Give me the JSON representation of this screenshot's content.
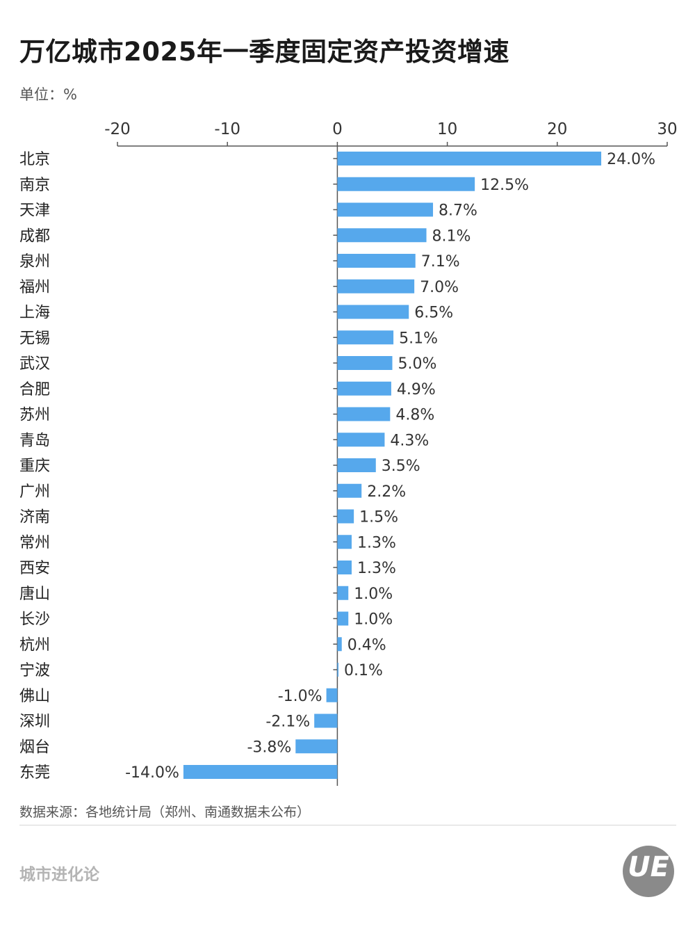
{
  "header": {
    "title": "万亿城市2025年一季度固定资产投资增速",
    "unit": "单位：%"
  },
  "chart_data": {
    "type": "bar",
    "orientation": "horizontal",
    "title": "万亿城市2025年一季度固定资产投资增速",
    "xlabel": "",
    "ylabel": "",
    "xlim": [
      -20,
      30
    ],
    "ticks": [
      -20,
      -10,
      0,
      10,
      20,
      30
    ],
    "categories": [
      "北京",
      "南京",
      "天津",
      "成都",
      "泉州",
      "福州",
      "上海",
      "无锡",
      "武汉",
      "合肥",
      "苏州",
      "青岛",
      "重庆",
      "广州",
      "济南",
      "常州",
      "西安",
      "唐山",
      "长沙",
      "杭州",
      "宁波",
      "佛山",
      "深圳",
      "烟台",
      "东莞"
    ],
    "values": [
      24.0,
      12.5,
      8.7,
      8.1,
      7.1,
      7.0,
      6.5,
      5.1,
      5.0,
      4.9,
      4.8,
      4.3,
      3.5,
      2.2,
      1.5,
      1.3,
      1.3,
      1.0,
      1.0,
      0.4,
      0.1,
      -1.0,
      -2.1,
      -3.8,
      -14.0
    ],
    "labels": [
      "24.0%",
      "12.5%",
      "8.7%",
      "8.1%",
      "7.1%",
      "7.0%",
      "6.5%",
      "5.1%",
      "5.0%",
      "4.9%",
      "4.8%",
      "4.3%",
      "3.5%",
      "2.2%",
      "1.5%",
      "1.3%",
      "1.3%",
      "1.0%",
      "1.0%",
      "0.4%",
      "0.1%",
      "-1.0%",
      "-2.1%",
      "-3.8%",
      "-14.0%"
    ],
    "grid": false,
    "bar_color": "#56a8ec"
  },
  "footer": {
    "source": "数据来源：各地统计局（郑州、南通数据未公布）",
    "brand": "城市进化论",
    "logo_text": "UE"
  },
  "colors": {
    "bar": "#56a8ec",
    "axis": "#555555",
    "text": "#222222"
  }
}
